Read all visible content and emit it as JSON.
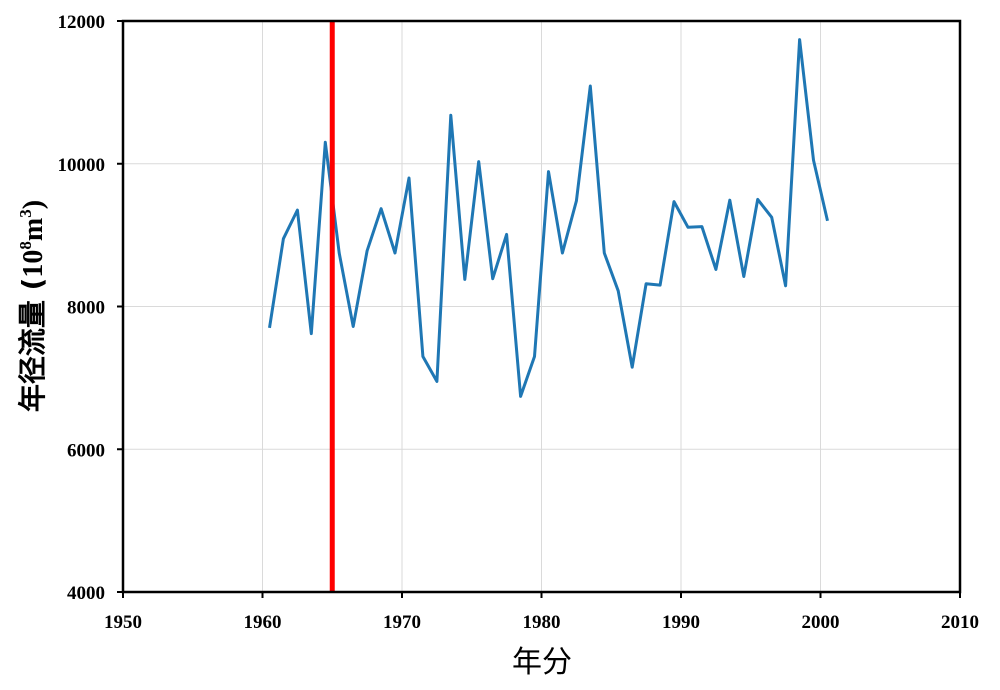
{
  "chart_data": {
    "type": "line",
    "title": "",
    "xlabel": "年分",
    "ylabel_text": "年径流量 (",
    "ylabel_unit_base": "10",
    "ylabel_unit_exp": "8",
    "ylabel_unit_m": "m",
    "ylabel_unit_m_exp": "3",
    "ylabel_unit_close": ")",
    "xlim": [
      1950,
      2010
    ],
    "ylim": [
      4000,
      12000
    ],
    "xticks": [
      1950,
      1960,
      1970,
      1980,
      1990,
      2000,
      2010
    ],
    "yticks": [
      4000,
      6000,
      8000,
      10000,
      12000
    ],
    "grid": true,
    "series": [
      {
        "name": "年径流量",
        "color": "#1f77b4",
        "x": [
          1960.5,
          1961.5,
          1962.5,
          1963.5,
          1964.5,
          1965.5,
          1966.5,
          1967.5,
          1968.5,
          1969.5,
          1970.5,
          1971.5,
          1972.5,
          1973.5,
          1974.5,
          1975.5,
          1976.5,
          1977.5,
          1978.5,
          1979.5,
          1980.5,
          1981.5,
          1982.5,
          1983.5,
          1984.5,
          1985.5,
          1986.5,
          1987.5,
          1988.5,
          1989.5,
          1990.5,
          1991.5,
          1992.5,
          1993.5,
          1994.5,
          1995.5,
          1996.5,
          1997.5,
          1998.5,
          1999.5,
          2000.5
        ],
        "values": [
          7700,
          8950,
          9350,
          7620,
          10300,
          8750,
          7720,
          8780,
          9370,
          8750,
          9800,
          7300,
          6950,
          10680,
          8380,
          10030,
          8390,
          9010,
          6740,
          7300,
          9890,
          8750,
          9480,
          11090,
          8750,
          8220,
          7150,
          8320,
          8300,
          9470,
          9110,
          9120,
          8520,
          9490,
          8420,
          9500,
          9250,
          8290,
          11740,
          10050,
          9200
        ]
      }
    ],
    "vline": {
      "x": 1965,
      "color": "#ff0000"
    }
  }
}
